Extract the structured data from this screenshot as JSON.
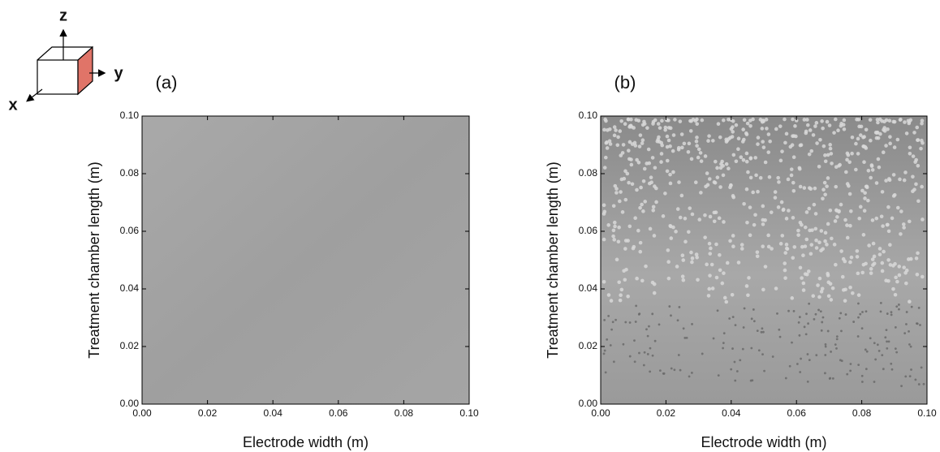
{
  "axis_icon": {
    "labels": [
      "z",
      "y",
      "x"
    ]
  },
  "chart_data": [
    {
      "type": "image",
      "title": "(a)",
      "x_label": "Electrode width (m)",
      "y_label": "Treatment chamber length (m)",
      "xlim": [
        0,
        0.1
      ],
      "ylim": [
        0,
        0.1
      ],
      "xticks": [
        {
          "value": 0,
          "label": "0.00"
        },
        0.02,
        0.04,
        0.06,
        0.08,
        {
          "value": 0.1,
          "label": "0.10"
        }
      ],
      "yticks": [
        {
          "value": 0,
          "label": "0.00"
        },
        0.02,
        0.04,
        0.06,
        0.08,
        {
          "value": 0.1,
          "label": "0.10"
        }
      ]
    },
    {
      "type": "image",
      "title": "(b)",
      "x_label": "Electrode width (m)",
      "y_label": "Treatment chamber length (m)",
      "xlim": [
        0,
        0.1
      ],
      "ylim": [
        0,
        0.1
      ],
      "xticks": [
        {
          "value": 0,
          "label": "0.00"
        },
        0.02,
        0.04,
        0.06,
        0.08,
        {
          "value": 0.1,
          "label": "0.10"
        }
      ],
      "yticks": [
        {
          "value": 0,
          "label": "0.00"
        },
        0.02,
        0.04,
        0.06,
        0.08,
        {
          "value": 0.1,
          "label": "0.10"
        }
      ]
    }
  ]
}
